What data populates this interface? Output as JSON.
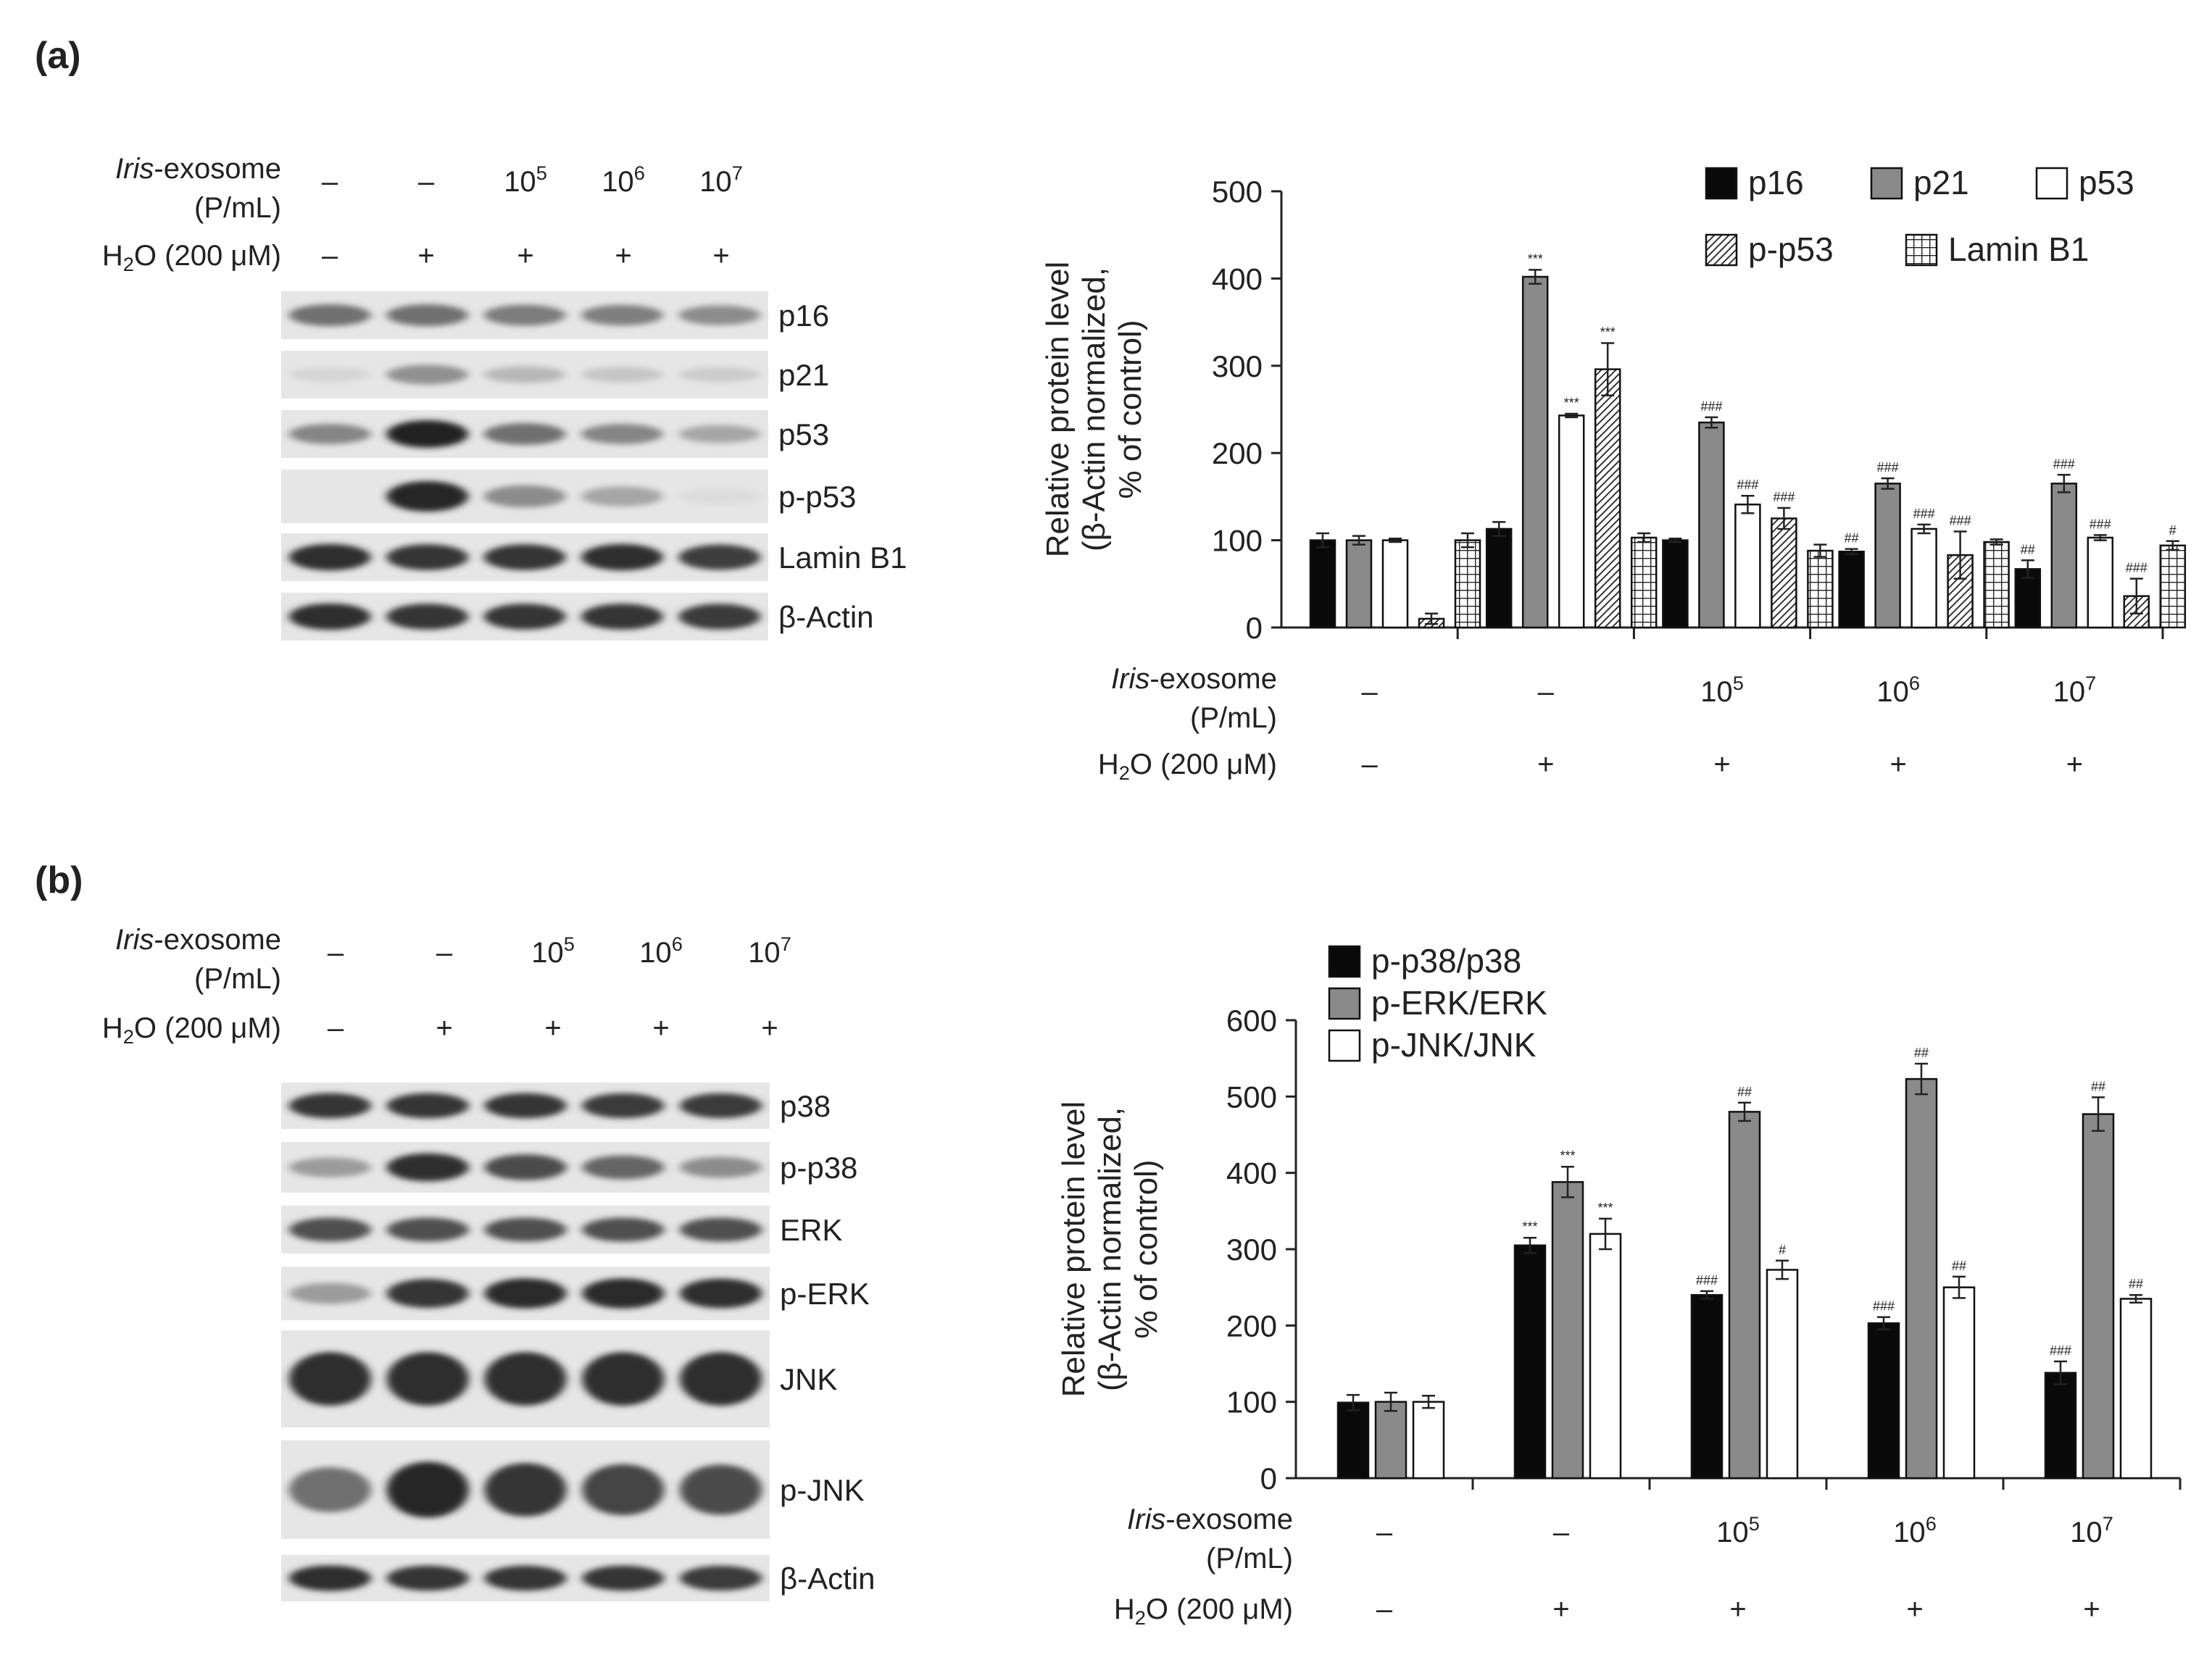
{
  "panels": [
    {
      "label": "(a)",
      "blot": {
        "treatments": [
          {
            "exosome": "–",
            "exp": "",
            "h2o2": "–"
          },
          {
            "exosome": "–",
            "exp": "",
            "h2o2": "+"
          },
          {
            "exosome": "10",
            "exp": "5",
            "h2o2": "+"
          },
          {
            "exosome": "10",
            "exp": "6",
            "h2o2": "+"
          },
          {
            "exosome": "10",
            "exp": "7",
            "h2o2": "+"
          }
        ],
        "bands": [
          {
            "label": "p16",
            "intensities": [
              0.55,
              0.55,
              0.5,
              0.48,
              0.42
            ]
          },
          {
            "label": "p21",
            "intensities": [
              0.08,
              0.4,
              0.22,
              0.15,
              0.12
            ]
          },
          {
            "label": "p53",
            "intensities": [
              0.45,
              0.92,
              0.55,
              0.45,
              0.3
            ]
          },
          {
            "label": "p-p53",
            "intensities": [
              0.0,
              0.9,
              0.42,
              0.3,
              0.05
            ]
          },
          {
            "label": "Lamin B1",
            "intensities": [
              0.85,
              0.82,
              0.82,
              0.85,
              0.78
            ]
          },
          {
            "label": "β-Actin",
            "intensities": [
              0.85,
              0.82,
              0.82,
              0.82,
              0.8
            ]
          }
        ]
      },
      "chart_data": {
        "type": "bar",
        "ylabel_line1": "Relative protein level",
        "ylabel_line2": "(β-Actin normalized,",
        "ylabel_line3": "% of control)",
        "ylim": [
          0,
          500
        ],
        "yticks": [
          0,
          100,
          200,
          300,
          400,
          500
        ],
        "legend_position": "top-right",
        "series": [
          {
            "name": "p16",
            "fill": "#0a0a0a",
            "pattern": "solid",
            "values": [
              100,
              113,
              100,
              87,
              67
            ],
            "errors": [
              8,
              8,
              2,
              3,
              10
            ],
            "marks": [
              "",
              "",
              "",
              "##",
              "##"
            ]
          },
          {
            "name": "p21",
            "fill": "#8a8a8a",
            "pattern": "solid",
            "values": [
              100,
              402,
              235,
              165,
              165
            ],
            "errors": [
              5,
              8,
              6,
              6,
              10
            ],
            "marks": [
              "",
              "***",
              "###",
              "###",
              "###"
            ]
          },
          {
            "name": "p53",
            "fill": "#ffffff",
            "pattern": "solid",
            "values": [
              100,
              243,
              141,
              113,
              103
            ],
            "errors": [
              2,
              2,
              10,
              5,
              3
            ],
            "marks": [
              "",
              "***",
              "###",
              "###",
              "###"
            ]
          },
          {
            "name": "p-p53",
            "fill": "#ffffff",
            "pattern": "diagonal",
            "values": [
              10,
              296,
              125,
              83,
              36
            ],
            "errors": [
              6,
              30,
              12,
              27,
              20
            ],
            "marks": [
              "",
              "***",
              "###",
              "###",
              "###"
            ]
          },
          {
            "name": "Lamin B1",
            "fill": "#ffffff",
            "pattern": "grid",
            "values": [
              100,
              103,
              88,
              98,
              94
            ],
            "errors": [
              8,
              5,
              7,
              3,
              5
            ],
            "marks": [
              "",
              "",
              "",
              "",
              "#"
            ]
          }
        ],
        "legend_rows": [
          [
            "p16",
            "p21",
            "p53"
          ],
          [
            "p-p53",
            "Lamin B1"
          ]
        ]
      }
    },
    {
      "label": "(b)",
      "blot": {
        "treatments": [
          {
            "exosome": "–",
            "exp": "",
            "h2o2": "–"
          },
          {
            "exosome": "–",
            "exp": "",
            "h2o2": "+"
          },
          {
            "exosome": "10",
            "exp": "5",
            "h2o2": "+"
          },
          {
            "exosome": "10",
            "exp": "6",
            "h2o2": "+"
          },
          {
            "exosome": "10",
            "exp": "7",
            "h2o2": "+"
          }
        ],
        "bands": [
          {
            "label": "p38",
            "intensities": [
              0.82,
              0.82,
              0.82,
              0.8,
              0.8
            ]
          },
          {
            "label": "p-p38",
            "intensities": [
              0.35,
              0.85,
              0.72,
              0.6,
              0.42
            ]
          },
          {
            "label": "ERK",
            "intensities": [
              0.7,
              0.7,
              0.7,
              0.7,
              0.7
            ]
          },
          {
            "label": "p-ERK",
            "intensities": [
              0.35,
              0.82,
              0.88,
              0.88,
              0.85
            ]
          },
          {
            "label": "JNK",
            "intensities": [
              0.85,
              0.85,
              0.85,
              0.85,
              0.85
            ]
          },
          {
            "label": "p-JNK",
            "intensities": [
              0.55,
              0.9,
              0.82,
              0.75,
              0.72
            ]
          },
          {
            "label": "β-Actin",
            "intensities": [
              0.85,
              0.82,
              0.82,
              0.82,
              0.8
            ]
          }
        ]
      },
      "chart_data": {
        "type": "bar",
        "ylabel_line1": "Relative protein level",
        "ylabel_line2": "(β-Actin normalized,",
        "ylabel_line3": "% of control)",
        "ylim": [
          0,
          600
        ],
        "yticks": [
          0,
          100,
          200,
          300,
          400,
          500,
          600
        ],
        "legend_position": "top-left",
        "series": [
          {
            "name": "p-p38/p38",
            "fill": "#0a0a0a",
            "pattern": "solid",
            "values": [
              99,
              305,
              240,
              203,
              138
            ],
            "errors": [
              10,
              10,
              5,
              8,
              15
            ],
            "marks": [
              "",
              "***",
              "###",
              "###",
              "###"
            ]
          },
          {
            "name": "p-ERK/ERK",
            "fill": "#8a8a8a",
            "pattern": "solid",
            "values": [
              100,
              388,
              480,
              523,
              477
            ],
            "errors": [
              12,
              20,
              12,
              20,
              22
            ],
            "marks": [
              "",
              "***",
              "##",
              "##",
              "##"
            ]
          },
          {
            "name": "p-JNK/JNK",
            "fill": "#ffffff",
            "pattern": "solid",
            "values": [
              100,
              320,
              273,
              250,
              235
            ],
            "errors": [
              8,
              20,
              12,
              14,
              5
            ],
            "marks": [
              "",
              "***",
              "#",
              "##",
              "##"
            ]
          }
        ],
        "legend_rows": [
          [
            "p-p38/p38"
          ],
          [
            "p-ERK/ERK"
          ],
          [
            "p-JNK/JNK"
          ]
        ]
      }
    }
  ],
  "treatment_labels": {
    "exosome_italic": "Iris",
    "exosome_rest": "-exosome",
    "exosome_unit": "(P/mL)",
    "h2o2_main": "H",
    "h2o2_sub": "2",
    "h2o2_o": "O",
    "h2o2_rest": " (200 μM)"
  }
}
